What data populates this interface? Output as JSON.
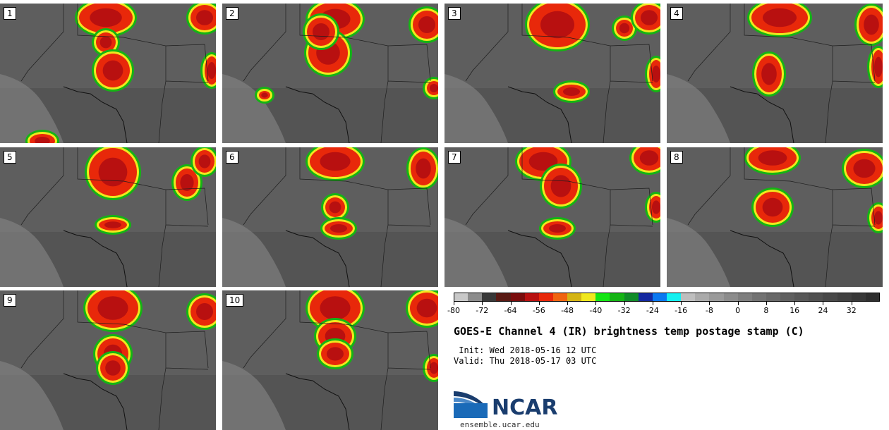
{
  "title": "GOES-E Channel 4 (IR) brightness temp postage stamp (C)",
  "init": " Init: Wed 2018-05-16 12 UTC",
  "valid": "Valid: Thu 2018-05-17 03 UTC",
  "logo_text": "NCAR",
  "site": "ensemble.ucar.edu",
  "panels": [
    "1",
    "2",
    "3",
    "4",
    "5",
    "6",
    "7",
    "8",
    "9",
    "10"
  ],
  "colorbar": {
    "min": -80,
    "max": 40,
    "step": 4,
    "tick_labels": [
      "-80",
      "-72",
      "-64",
      "-56",
      "-48",
      "-40",
      "-32",
      "-24",
      "-16",
      "-8",
      "0",
      "8",
      "16",
      "24",
      "32"
    ],
    "tick_values": [
      -80,
      -72,
      -64,
      -56,
      -48,
      -40,
      -32,
      -24,
      -16,
      -8,
      0,
      8,
      16,
      24,
      32
    ],
    "colors": [
      "#c8c8c8",
      "#8c8c8c",
      "#383838",
      "#5a1a14",
      "#7a0c0c",
      "#b81010",
      "#e8280a",
      "#f06410",
      "#d4b414",
      "#f0e81e",
      "#14e614",
      "#14b414",
      "#108c28",
      "#1428a0",
      "#0a78f0",
      "#14f0f0",
      "#bebebe",
      "#aaaaaa",
      "#9a9a9a",
      "#8c8c8c",
      "#7e7e7e",
      "#727272",
      "#686868",
      "#606060",
      "#585858",
      "#505050",
      "#484848",
      "#404040",
      "#383838",
      "#2e2e2e"
    ]
  }
}
